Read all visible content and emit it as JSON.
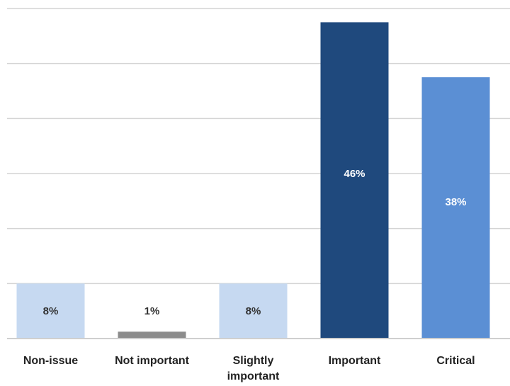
{
  "chart_data": {
    "type": "bar",
    "categories": [
      "Non-issue",
      "Not important",
      "Slightly important",
      "Important",
      "Critical"
    ],
    "category_lines": [
      [
        "Non-issue"
      ],
      [
        "Not important"
      ],
      [
        "Slightly",
        "important"
      ],
      [
        "Important"
      ],
      [
        "Critical"
      ]
    ],
    "values": [
      8,
      1,
      8,
      46,
      38
    ],
    "value_labels": [
      "8%",
      "1%",
      "8%",
      "46%",
      "38%"
    ],
    "colors": [
      "#c6d9f1",
      "#8c8c8c",
      "#c6d9f1",
      "#1f497d",
      "#5b8fd4"
    ],
    "label_colors": [
      "#333333",
      "#333333",
      "#333333",
      "#ffffff",
      "#ffffff"
    ],
    "ylim": [
      0,
      48
    ],
    "y_grid_step": 8,
    "grid": true,
    "title": "",
    "xlabel": "",
    "ylabel": ""
  }
}
